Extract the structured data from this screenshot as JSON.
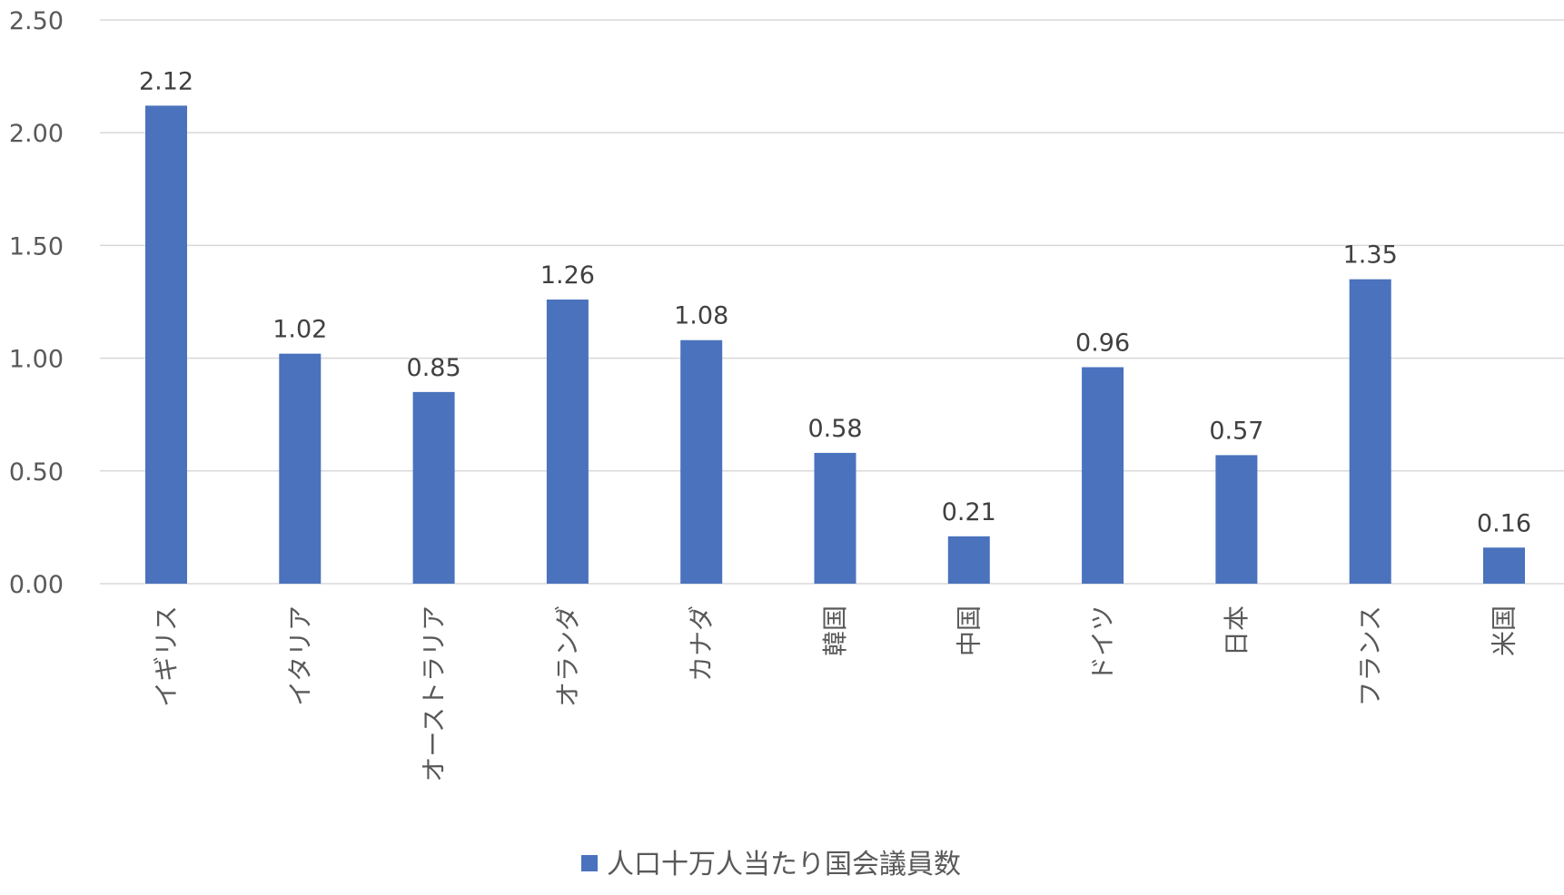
{
  "chart_data": {
    "type": "bar",
    "categories": [
      "イギリス",
      "イタリア",
      "オーストラリア",
      "オランダ",
      "カナダ",
      "韓国",
      "中国",
      "ドイツ",
      "日本",
      "フランス",
      "米国"
    ],
    "series": [
      {
        "name": "人口十万人当たり国会議員数",
        "values": [
          2.12,
          1.02,
          0.85,
          1.26,
          1.08,
          0.58,
          0.21,
          0.96,
          0.57,
          1.35,
          0.16
        ],
        "labels": [
          "2.12",
          "1.02",
          "0.85",
          "1.26",
          "1.08",
          "0.58",
          "0.21",
          "0.96",
          "0.57",
          "1.35",
          "0.16"
        ],
        "color": "#4a72bd"
      }
    ],
    "y_ticks": [
      "0.00",
      "0.50",
      "1.00",
      "1.50",
      "2.00",
      "2.50"
    ],
    "ylim": [
      0,
      2.5
    ],
    "grid": true,
    "legend_position": "bottom",
    "category_label_orientation": "vertical",
    "title": "",
    "xlabel": "",
    "ylabel": ""
  }
}
